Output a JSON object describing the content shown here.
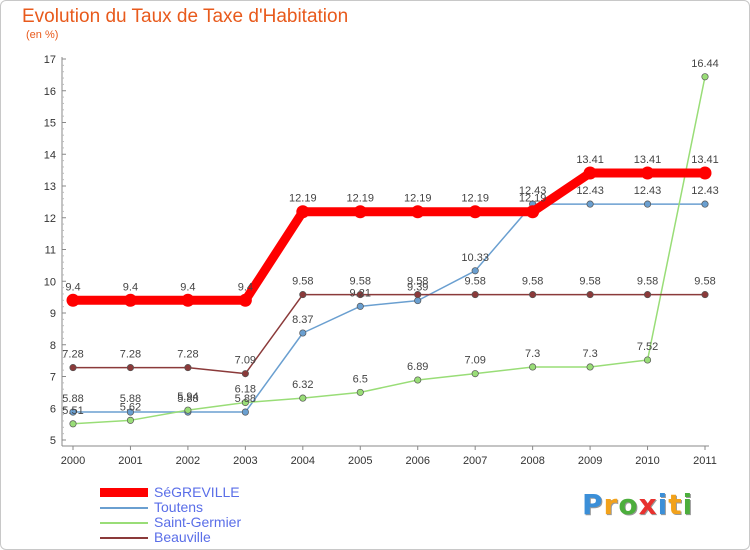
{
  "title": "Evolution du Taux de Taxe d'Habitation",
  "subtitle": "(en %)",
  "logo": {
    "text": "Proxiti"
  },
  "legend": [
    {
      "label": "SéGREVILLE"
    },
    {
      "label": "Toutens"
    },
    {
      "label": "Saint-Germier"
    },
    {
      "label": "Beauville"
    }
  ],
  "chart_data": {
    "type": "line",
    "title": "Evolution du Taux de Taxe d'Habitation",
    "ylabel": "(en %)",
    "ylim": [
      5,
      17
    ],
    "yticks": [
      5,
      6,
      7,
      8,
      9,
      10,
      11,
      12,
      13,
      14,
      15,
      16,
      17
    ],
    "x": [
      "2000",
      "2001",
      "2002",
      "2003",
      "2004",
      "2005",
      "2006",
      "2007",
      "2008",
      "2009",
      "2010",
      "2011"
    ],
    "grid": false,
    "legend_position": "bottom-left",
    "series": [
      {
        "name": "SéGREVILLE",
        "color": "#ff0000",
        "values": [
          9.4,
          9.4,
          9.4,
          9.4,
          12.19,
          12.19,
          12.19,
          12.19,
          12.19,
          13.41,
          13.41,
          13.41
        ],
        "labels": [
          "9.4",
          "9.4",
          "9.4",
          "9.4",
          "12.19",
          "12.19",
          "12.19",
          "12.19",
          "12.19",
          "13.41",
          "13.41",
          "13.41"
        ]
      },
      {
        "name": "Toutens",
        "color": "#6a9fd0",
        "values": [
          5.88,
          5.88,
          5.88,
          5.88,
          8.37,
          9.21,
          9.39,
          10.33,
          12.43,
          12.43,
          12.43,
          12.43
        ],
        "labels": [
          "5.88",
          "5.88",
          "5.88",
          "5.88",
          "8.37",
          "9.21",
          "9.39",
          "10.33",
          "12.43",
          "12.43",
          "12.43",
          "12.43"
        ]
      },
      {
        "name": "Saint-Germier",
        "color": "#99dd77",
        "values": [
          5.51,
          5.62,
          5.94,
          6.18,
          6.32,
          6.5,
          6.89,
          7.09,
          7.3,
          7.3,
          7.52,
          16.44
        ],
        "labels": [
          "5.51",
          "5.62",
          "5.94",
          "6.18",
          "6.32",
          "6.5",
          "6.89",
          "7.09",
          "7.3",
          "7.3",
          "7.52",
          "16.44"
        ]
      },
      {
        "name": "Beauville",
        "color": "#8b3a3a",
        "values": [
          7.28,
          7.28,
          7.28,
          7.09,
          9.58,
          9.58,
          9.58,
          9.58,
          9.58,
          9.58,
          9.58,
          9.58
        ],
        "labels": [
          "7.28",
          "7.28",
          "7.28",
          "7.09",
          "9.58",
          "9.58",
          "9.58",
          "9.58",
          "9.58",
          "9.58",
          "9.58",
          "9.58"
        ]
      }
    ]
  }
}
